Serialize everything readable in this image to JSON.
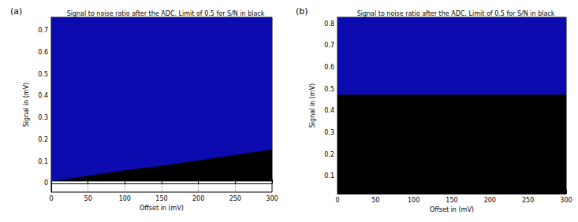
{
  "chart_data": [
    {
      "type": "area",
      "label": "(a)",
      "title": "Signal to noise ratio after the ADC. Limit of 0.5 for S/N in black",
      "x_label": "Offset in (mV)",
      "y_label": "Signal in (mV)",
      "x": [
        0,
        50,
        100,
        150,
        200,
        250,
        300
      ],
      "signal_start": 0.01,
      "series": [
        {
          "color": "#0b0bb0",
          "values": [
            0.76,
            0.76,
            0.76,
            0.76,
            0.76,
            0.76,
            0.76
          ]
        },
        {
          "color": "#000000",
          "values": [
            0.01,
            0.035,
            0.06,
            0.08,
            0.105,
            0.13,
            0.155
          ]
        }
      ],
      "xlim": [
        0,
        300
      ],
      "xticks": [
        0,
        50,
        100,
        150,
        200,
        250,
        300
      ],
      "ylim": [
        -0.04,
        0.76
      ],
      "yticks": [
        0,
        0.1,
        0.2,
        0.3,
        0.4,
        0.5,
        0.6,
        0.7
      ],
      "grid": true
    },
    {
      "type": "area",
      "label": "(b)",
      "title": "Signal to noise ratio after the ADC. Limit of 0.5 for S/N in black",
      "x_label": "Offset in (mV)",
      "y_label": "Signal in (mV)",
      "x": [
        0,
        50,
        100,
        150,
        200,
        250,
        300
      ],
      "signal_start": 0.02,
      "series": [
        {
          "color": "#0b0bb0",
          "values": [
            0.83,
            0.83,
            0.83,
            0.83,
            0.83,
            0.83,
            0.83
          ]
        },
        {
          "color": "#000000",
          "values": [
            0.475,
            0.475,
            0.475,
            0.475,
            0.475,
            0.475,
            0.475
          ]
        }
      ],
      "xlim": [
        0,
        300
      ],
      "xticks": [
        0,
        50,
        100,
        150,
        200,
        250,
        300
      ],
      "ylim": [
        0.02,
        0.83
      ],
      "yticks": [
        0.1,
        0.2,
        0.3,
        0.4,
        0.5,
        0.6,
        0.7,
        0.8
      ],
      "grid": false
    }
  ]
}
